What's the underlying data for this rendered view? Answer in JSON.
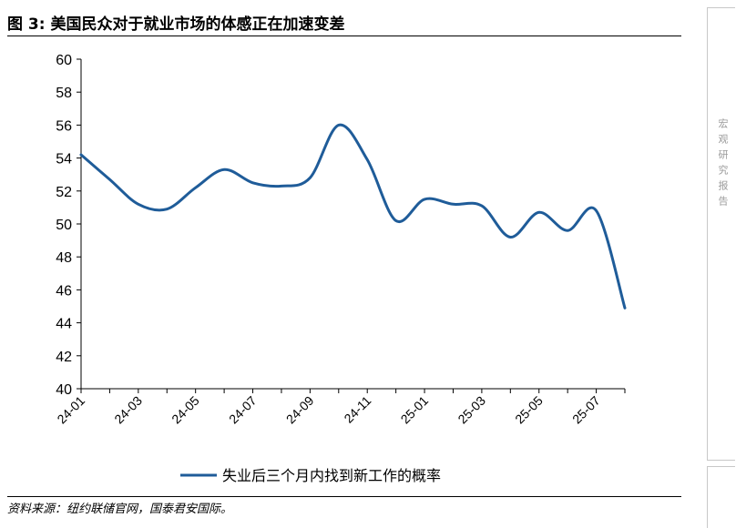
{
  "header": {
    "title": "图 3:  美国民众对于就业市场的体感正在加速变差"
  },
  "footer": {
    "source": "资料来源：纽约联储官网，国泰君安国际。"
  },
  "sidebar": {
    "label": "宏观研究报告"
  },
  "colors": {
    "series": "#1f5c99",
    "axis": "#000000"
  },
  "chart_data": {
    "type": "line",
    "title": "",
    "xlabel": "",
    "ylabel": "",
    "ylim": [
      40,
      60
    ],
    "yticks": [
      40,
      42,
      44,
      46,
      48,
      50,
      52,
      54,
      56,
      58,
      60
    ],
    "xticks": [
      "24-01",
      "24-03",
      "24-05",
      "24-07",
      "24-09",
      "24-11",
      "25-01",
      "25-03",
      "25-05",
      "25-07"
    ],
    "grid": false,
    "legend_position": "bottom",
    "x": [
      "24-01",
      "24-02",
      "24-03",
      "24-04",
      "24-05",
      "24-06",
      "24-07",
      "24-08",
      "24-09",
      "24-10",
      "24-11",
      "24-12",
      "25-01",
      "25-02",
      "25-03",
      "25-04",
      "25-05",
      "25-06",
      "25-07",
      "25-08"
    ],
    "series": [
      {
        "name": "失业后三个月内找到新工作的概率",
        "values": [
          54.2,
          52.7,
          51.2,
          50.9,
          52.2,
          53.3,
          52.5,
          52.3,
          52.8,
          56.0,
          53.9,
          50.2,
          51.5,
          51.2,
          51.1,
          49.2,
          50.7,
          49.6,
          50.8,
          44.9
        ]
      }
    ]
  }
}
